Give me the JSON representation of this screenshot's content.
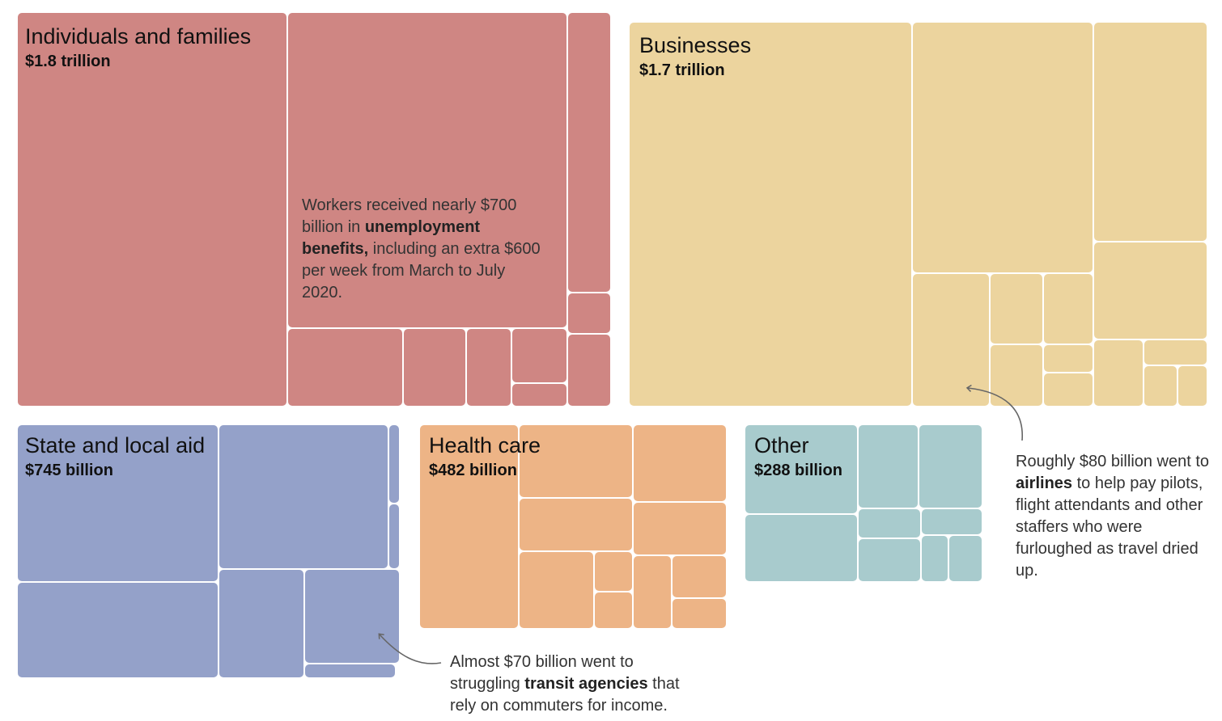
{
  "chart_data": {
    "type": "treemap",
    "title": "",
    "units": "US dollars",
    "groups": [
      {
        "id": "individuals",
        "name": "Individuals and families",
        "total_label": "$1.8 trillion",
        "total_billions": 1800,
        "color": "#cf8683",
        "note": {
          "before": "Workers received nearly $700 billion in ",
          "bold": "unemployment benefits,",
          "after": " including an extra $600 per week from March to July 2020."
        }
      },
      {
        "id": "businesses",
        "name": "Businesses",
        "total_label": "$1.7 trillion",
        "total_billions": 1700,
        "color": "#ecd49e"
      },
      {
        "id": "state_local",
        "name": "State and local aid",
        "total_label": "$745 billion",
        "total_billions": 745,
        "color": "#94a1c9"
      },
      {
        "id": "health",
        "name": "Health care",
        "total_label": "$482 billion",
        "total_billions": 482,
        "color": "#edb486"
      },
      {
        "id": "other",
        "name": "Other",
        "total_label": "$288 billion",
        "total_billions": 288,
        "color": "#a8cbcd"
      }
    ],
    "annotations": [
      {
        "id": "airlines",
        "value_billions": 80,
        "before": "Roughly $80 billion went to ",
        "bold": "airlines",
        "after": " to help pay pilots, flight attendants and other staffers who were furloughed as travel dried up."
      },
      {
        "id": "transit",
        "value_billions": 70,
        "before": "Almost $70 billion went to struggling ",
        "bold": "transit agencies",
        "after": " that rely on commuters for income."
      }
    ]
  }
}
